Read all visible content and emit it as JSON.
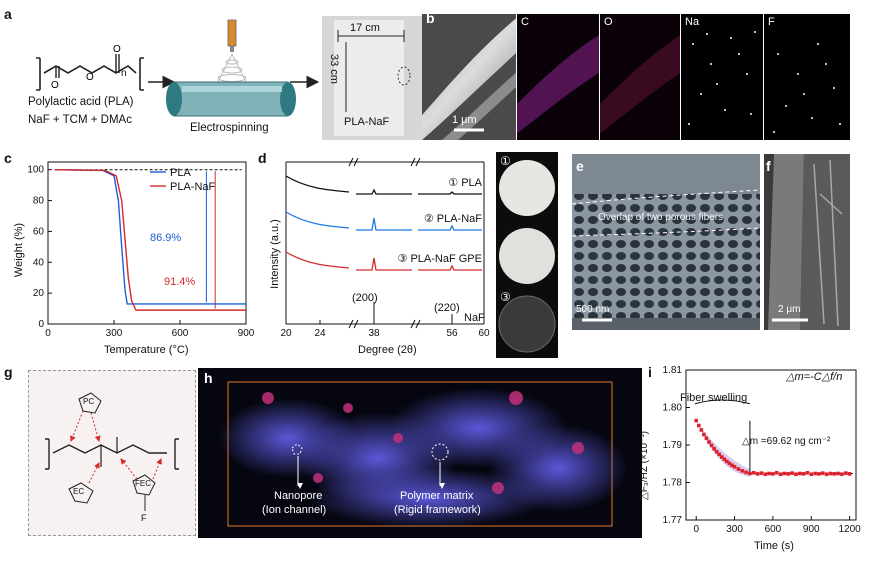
{
  "panel_labels": {
    "a": "a",
    "b": "b",
    "c": "c",
    "d": "d",
    "e": "e",
    "f": "f",
    "g": "g",
    "h": "h",
    "i": "i"
  },
  "panel_a": {
    "polymer_name": "Polylactic acid (PLA)",
    "precursors": "NaF + TCM + DMAc",
    "subscript_n": "n",
    "process": "Electrospinning",
    "width_label": "17 cm",
    "height_label": "33 cm",
    "membrane_label": "PLA-NaF"
  },
  "panel_b": {
    "scale": "1 μm",
    "maps": [
      "C",
      "O",
      "Na",
      "F"
    ]
  },
  "panel_c": {
    "ylabel": "Weight (%)",
    "xlabel": "Temperature (°C)",
    "annot_pla": "86.9%",
    "annot_naf": "91.4%"
  },
  "panel_d": {
    "ylabel": "Intensity (a.u.)",
    "xlabel": "Degree (2θ)",
    "peak_200": "(200)",
    "peak_220": "(220)",
    "naf_label": "NaF",
    "photo_labels": [
      "①",
      "②",
      "③"
    ]
  },
  "panel_e": {
    "overlap": "Overlap of two porous fibers",
    "scale": "500 nm"
  },
  "panel_f": {
    "scale": "2 μm"
  },
  "panel_g": {
    "labels": [
      "PC",
      "EC",
      "FEC",
      "F"
    ]
  },
  "panel_h": {
    "nanopore": "Nanopore",
    "nanopore_sub": "(Ion channel)",
    "matrix": "Polymer matrix",
    "matrix_sub": "(Rigid framework)"
  },
  "panel_i": {
    "equation": "△m=-C△f/n",
    "swelling": "Fiber swelling",
    "mass": "△m =69.62 ng cm⁻²",
    "ylabel": "△F₃/HZ (×10⁻³)",
    "xlabel": "Time (s)"
  },
  "colors": {
    "pla": "#1f5fd6",
    "pla_naf": "#d42a2a",
    "black": "#111111",
    "swell_fill": "#c9b8ea"
  },
  "chart_data": [
    {
      "type": "line",
      "panel": "c",
      "xlabel": "Temperature (°C)",
      "ylabel": "Weight (%)",
      "xlim": [
        0,
        900
      ],
      "ylim": [
        0,
        105
      ],
      "xticks": [
        0,
        300,
        600,
        900
      ],
      "yticks": [
        0,
        20,
        40,
        60,
        80,
        100
      ],
      "legend": "top-right",
      "series": [
        {
          "name": "PLA",
          "color": "#1f5fd6",
          "x": [
            30,
            250,
            300,
            320,
            335,
            350,
            360,
            900
          ],
          "y": [
            100,
            99.5,
            96,
            80,
            50,
            22,
            13,
            13
          ]
        },
        {
          "name": "PLA-NaF",
          "color": "#d42a2a",
          "x": [
            30,
            260,
            310,
            335,
            350,
            365,
            380,
            400,
            900
          ],
          "y": [
            100,
            99.5,
            96,
            80,
            55,
            30,
            15,
            9,
            9
          ]
        }
      ],
      "annotations": [
        "86.9%",
        "91.4%"
      ]
    },
    {
      "type": "line",
      "panel": "d",
      "xlabel": "Degree (2θ)",
      "ylabel": "Intensity (a.u.)",
      "xticks": [
        "20",
        "24",
        "38",
        "56",
        "60"
      ],
      "legend": "inline",
      "series": [
        {
          "name": "① PLA",
          "color": "#111111"
        },
        {
          "name": "② PLA-NaF",
          "color": "#1f7ae0"
        },
        {
          "name": "③ PLA-NaF GPE",
          "color": "#d42a2a"
        }
      ],
      "peaks": [
        {
          "label": "(200)",
          "x": 38.8
        },
        {
          "label": "(220)",
          "x": 56
        }
      ]
    },
    {
      "type": "scatter",
      "panel": "i",
      "xlabel": "Time (s)",
      "ylabel": "△F₃/HZ (×10⁻³)",
      "xlim": [
        -80,
        1250
      ],
      "ylim": [
        1.77,
        1.81
      ],
      "xticks": [
        0,
        300,
        600,
        900,
        1200
      ],
      "yticks": [
        1.77,
        1.78,
        1.79,
        1.8,
        1.81
      ],
      "series": [
        {
          "name": "",
          "color": "#e0202a",
          "x": [
            0,
            20,
            40,
            60,
            80,
            100,
            120,
            140,
            160,
            180,
            200,
            220,
            240,
            260,
            280,
            300,
            330,
            360,
            390,
            420,
            450,
            480,
            510,
            540,
            570,
            600,
            630,
            660,
            690,
            720,
            750,
            780,
            810,
            840,
            870,
            900,
            930,
            960,
            990,
            1020,
            1050,
            1080,
            1110,
            1140,
            1170,
            1200
          ],
          "y": [
            1.7965,
            1.7952,
            1.794,
            1.7928,
            1.7918,
            1.7908,
            1.7899,
            1.789,
            1.7882,
            1.7875,
            1.7868,
            1.7862,
            1.7856,
            1.7851,
            1.7846,
            1.7842,
            1.7836,
            1.7831,
            1.7827,
            1.7824,
            1.7826,
            1.7823,
            1.7825,
            1.7822,
            1.7824,
            1.7823,
            1.7826,
            1.7822,
            1.7824,
            1.7823,
            1.7825,
            1.7822,
            1.7824,
            1.7823,
            1.7826,
            1.7822,
            1.7824,
            1.7823,
            1.7825,
            1.7822,
            1.7824,
            1.7823,
            1.7824,
            1.7822,
            1.7825,
            1.7823
          ]
        }
      ],
      "annotations": [
        "△m=-C△f/n",
        "Fiber swelling",
        "△m =69.62 ng cm⁻²"
      ]
    }
  ]
}
